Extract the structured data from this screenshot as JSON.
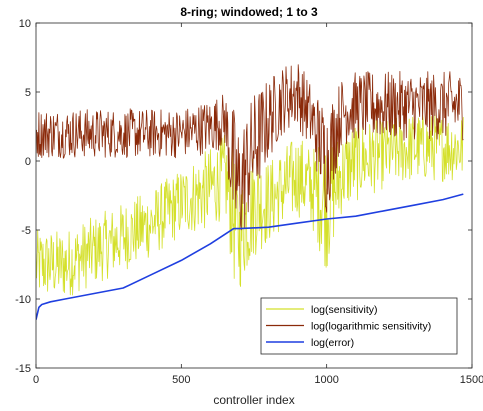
{
  "chart_data": {
    "type": "line",
    "title": "8-ring; windowed; 1 to 3",
    "xlabel": "controller index",
    "ylabel": "",
    "xlim": [
      0,
      1500
    ],
    "ylim": [
      -15,
      10
    ],
    "xticks": [
      0,
      500,
      1000,
      1500
    ],
    "yticks": [
      -15,
      -10,
      -5,
      0,
      5,
      10
    ],
    "grid": false,
    "legend_position": "bottom-right",
    "series": [
      {
        "name": "log(sensitivity)",
        "color": "#d4e02a",
        "style": "noisy",
        "x": [
          0,
          100,
          200,
          300,
          400,
          500,
          600,
          650,
          680,
          700,
          750,
          800,
          850,
          900,
          950,
          1000,
          1050,
          1100,
          1200,
          1300,
          1400,
          1470
        ],
        "values": [
          -7.5,
          -7.5,
          -6.5,
          -5.5,
          -4.5,
          -3.0,
          -2.0,
          -1.0,
          -4.0,
          -5.5,
          -3.0,
          -3.0,
          -2.0,
          -1.0,
          -2.0,
          -3.0,
          -1.0,
          0.0,
          0.5,
          1.0,
          1.0,
          1.0
        ],
        "spread": [
          2.5,
          2.5,
          2.5,
          2.5,
          2.5,
          2.5,
          3.0,
          3.0,
          5.0,
          4.0,
          4.0,
          3.0,
          3.0,
          3.0,
          3.0,
          5.0,
          3.0,
          3.0,
          2.5,
          2.5,
          2.5,
          2.5
        ]
      },
      {
        "name": "log(logarithmic sensitivity)",
        "color": "#8b2a0a",
        "style": "noisy",
        "x": [
          0,
          100,
          200,
          300,
          400,
          500,
          600,
          650,
          680,
          700,
          750,
          800,
          850,
          900,
          950,
          1000,
          1050,
          1100,
          1200,
          1300,
          1400,
          1470
        ],
        "values": [
          2.0,
          2.0,
          2.0,
          2.0,
          2.0,
          2.0,
          2.5,
          3.0,
          -1.0,
          -2.0,
          1.0,
          3.0,
          4.5,
          5.0,
          3.0,
          0.0,
          3.5,
          4.0,
          4.0,
          4.0,
          4.0,
          4.0
        ],
        "spread": [
          1.8,
          1.8,
          1.8,
          1.8,
          1.8,
          1.8,
          2.0,
          2.0,
          5.0,
          4.5,
          4.0,
          3.0,
          2.5,
          2.5,
          2.5,
          4.0,
          2.5,
          2.5,
          2.5,
          2.5,
          2.5,
          2.5
        ]
      },
      {
        "name": "log(error)",
        "color": "#1f3fe0",
        "style": "smooth",
        "x": [
          0,
          10,
          20,
          50,
          100,
          200,
          300,
          400,
          500,
          600,
          680,
          700,
          800,
          900,
          1000,
          1100,
          1200,
          1300,
          1400,
          1470
        ],
        "values": [
          -11.5,
          -10.6,
          -10.4,
          -10.2,
          -10.0,
          -9.6,
          -9.2,
          -8.2,
          -7.2,
          -6.0,
          -4.9,
          -4.9,
          -4.8,
          -4.5,
          -4.2,
          -4.0,
          -3.6,
          -3.2,
          -2.8,
          -2.4
        ]
      }
    ]
  }
}
